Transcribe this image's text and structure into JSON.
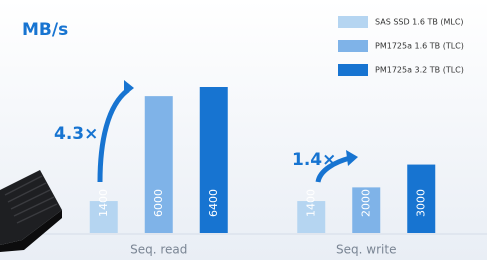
{
  "chart_data": {
    "type": "bar",
    "ylabel": "MB/s",
    "categories": [
      "Seq. read",
      "Seq. write"
    ],
    "series": [
      {
        "name": "SAS SSD 1.6 TB (MLC)",
        "color": "#b5d5f1",
        "values": [
          1400,
          1400
        ]
      },
      {
        "name": "PM1725a 1.6 TB (TLC)",
        "color": "#7fb3e8",
        "values": [
          6000,
          2000
        ]
      },
      {
        "name": "PM1725a 3.2 TB (TLC)",
        "color": "#1774d1",
        "values": [
          6400,
          3000
        ]
      }
    ],
    "annotations": [
      "4.3×",
      "1.4×"
    ],
    "legend": "upper right"
  }
}
